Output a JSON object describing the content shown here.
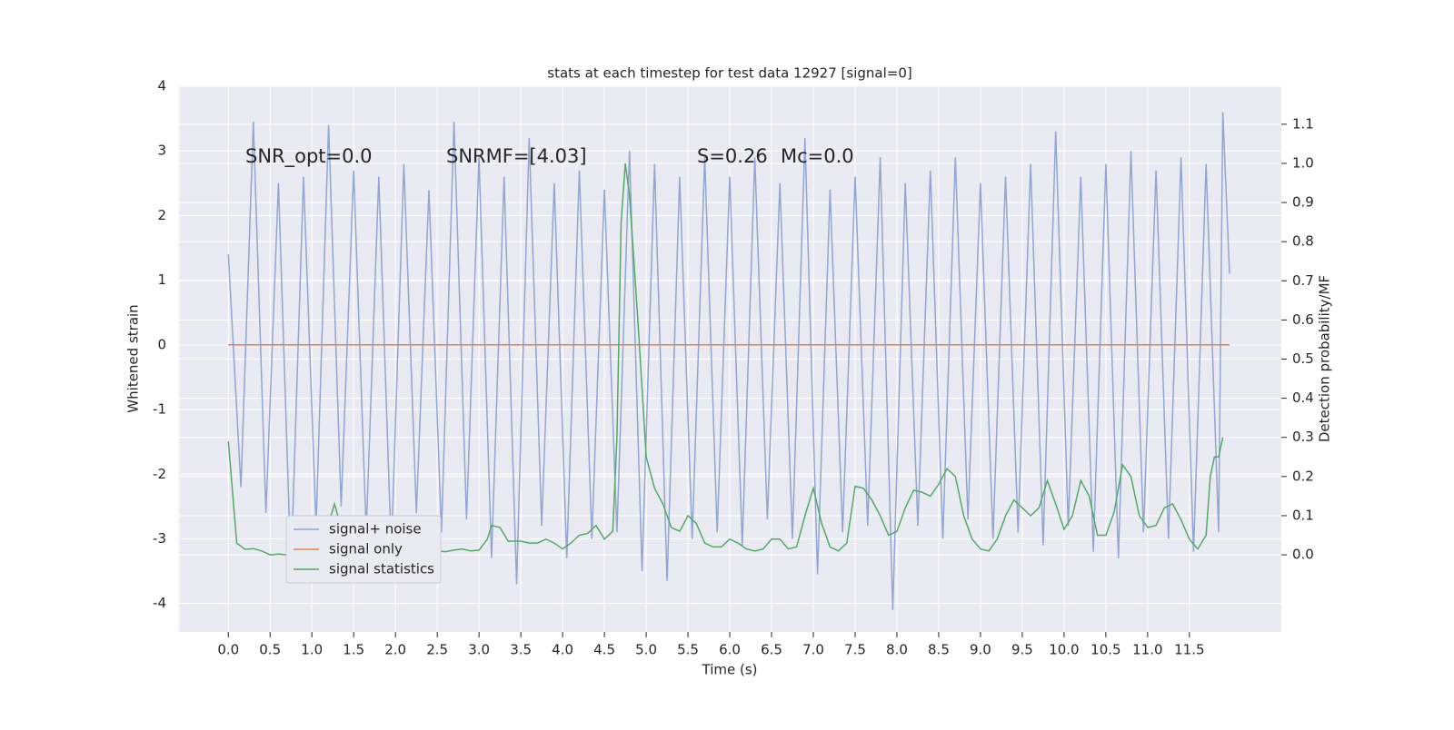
{
  "chart_data": {
    "type": "line",
    "title": "stats at each timestep for test data 12927 [signal=0]",
    "xlabel": "Time (s)",
    "ylabel": "Whitened strain",
    "y2label": "Detection probability/MF",
    "annotations": [
      "SNR_opt=0.0",
      "SNRMF=[4.03]",
      "S=0.26",
      "Mc=0.0"
    ],
    "xlim": [
      -0.59,
      12.6
    ],
    "ylim": [
      -4.44,
      4
    ],
    "y2lim": [
      -0.197,
      1.197
    ],
    "xticks": [
      {
        "value": 0,
        "label": "0.0"
      },
      0.5,
      {
        "value": 1,
        "label": "1.0"
      },
      1.5,
      {
        "value": 2,
        "label": "2.0"
      },
      2.5,
      {
        "value": 3,
        "label": "3.0"
      },
      3.5,
      {
        "value": 4,
        "label": "4.0"
      },
      4.5,
      {
        "value": 5,
        "label": "5.0"
      },
      5.5,
      {
        "value": 6,
        "label": "6.0"
      },
      6.5,
      {
        "value": 7,
        "label": "7.0"
      },
      7.5,
      {
        "value": 8,
        "label": "8.0"
      },
      8.5,
      {
        "value": 9,
        "label": "9.0"
      },
      9.5,
      {
        "value": 10,
        "label": "10.0"
      },
      10.5,
      {
        "value": 11,
        "label": "11.0"
      },
      11.5
    ],
    "yticks": [
      -4,
      -3,
      -2,
      -1,
      0,
      1,
      2,
      3,
      4
    ],
    "y2ticks": [
      {
        "value": 0,
        "label": "0.0"
      },
      0.1,
      0.2,
      0.3,
      0.4,
      0.5,
      0.6,
      0.7,
      0.8,
      0.9,
      {
        "value": 1,
        "label": "1.0"
      },
      1.1
    ],
    "grid": true,
    "legend": "lower left",
    "series": [
      {
        "name": "signal+ noise",
        "color": "#92a6cf",
        "x": [
          0,
          0.15,
          0.3,
          0.45,
          0.6,
          0.75,
          0.9,
          1.05,
          1.2,
          1.35,
          1.5,
          1.65,
          1.8,
          1.95,
          2.1,
          2.25,
          2.4,
          2.55,
          2.7,
          2.85,
          3.0,
          3.15,
          3.3,
          3.45,
          3.6,
          3.75,
          3.9,
          4.05,
          4.2,
          4.35,
          4.5,
          4.65,
          4.8,
          4.95,
          5.1,
          5.25,
          5.4,
          5.55,
          5.7,
          5.85,
          6.0,
          6.15,
          6.3,
          6.45,
          6.6,
          6.75,
          6.9,
          7.05,
          7.2,
          7.35,
          7.5,
          7.65,
          7.8,
          7.95,
          8.1,
          8.25,
          8.4,
          8.55,
          8.7,
          8.85,
          9.0,
          9.15,
          9.3,
          9.45,
          9.6,
          9.75,
          9.9,
          10.05,
          10.2,
          10.35,
          10.5,
          10.65,
          10.8,
          10.95,
          11.1,
          11.25,
          11.4,
          11.55,
          11.7,
          11.85,
          11.9,
          11.98
        ],
        "values": [
          1.4,
          -2.2,
          3.45,
          -2.6,
          2.5,
          -3.5,
          2.6,
          -2.8,
          3.4,
          -2.5,
          2.7,
          -2.9,
          2.6,
          -3.2,
          2.8,
          -2.6,
          2.4,
          -2.9,
          3.45,
          -2.7,
          2.9,
          -3.3,
          2.6,
          -3.7,
          3.2,
          -2.8,
          2.5,
          -3.3,
          2.7,
          -3.0,
          2.4,
          -2.9,
          3.0,
          -3.5,
          2.8,
          -3.65,
          2.6,
          -3.0,
          2.9,
          -2.9,
          2.6,
          -3.1,
          2.9,
          -2.7,
          2.5,
          -3.0,
          3.2,
          -3.55,
          2.4,
          -2.9,
          2.6,
          -2.8,
          2.9,
          -4.1,
          2.5,
          -2.8,
          2.7,
          -3.0,
          2.9,
          -2.7,
          2.5,
          -3.0,
          2.6,
          -2.9,
          2.8,
          -3.1,
          3.3,
          -2.8,
          2.6,
          -3.2,
          2.8,
          -3.3,
          3.0,
          -2.9,
          2.7,
          -3.0,
          2.9,
          -3.2,
          2.8,
          -2.9,
          3.6,
          1.1
        ]
      },
      {
        "name": "signal only",
        "color": "#dd8452",
        "x": [
          0,
          11.98
        ],
        "values": [
          0,
          0
        ]
      },
      {
        "name": "signal statistics",
        "color": "#55a868",
        "axis": "y2",
        "x": [
          0,
          0.1,
          0.2,
          0.3,
          0.4,
          0.5,
          0.6,
          0.7,
          0.8,
          0.9,
          1.0,
          1.1,
          1.15,
          1.2,
          1.27,
          1.35,
          1.45,
          1.5,
          1.6,
          1.7,
          1.8,
          1.9,
          2.0,
          2.1,
          2.2,
          2.3,
          2.4,
          2.5,
          2.6,
          2.7,
          2.8,
          2.9,
          3.0,
          3.1,
          3.15,
          3.25,
          3.35,
          3.5,
          3.6,
          3.7,
          3.8,
          3.9,
          4.0,
          4.1,
          4.2,
          4.3,
          4.4,
          4.5,
          4.6,
          4.65,
          4.7,
          4.75,
          4.8,
          4.9,
          5.0,
          5.1,
          5.2,
          5.3,
          5.4,
          5.5,
          5.6,
          5.7,
          5.8,
          5.9,
          6.0,
          6.1,
          6.2,
          6.3,
          6.4,
          6.5,
          6.6,
          6.7,
          6.8,
          6.9,
          7.0,
          7.1,
          7.2,
          7.3,
          7.4,
          7.5,
          7.6,
          7.7,
          7.8,
          7.9,
          8.0,
          8.1,
          8.2,
          8.3,
          8.4,
          8.5,
          8.6,
          8.7,
          8.8,
          8.9,
          9.0,
          9.1,
          9.2,
          9.3,
          9.4,
          9.5,
          9.6,
          9.7,
          9.8,
          9.9,
          10.0,
          10.1,
          10.2,
          10.3,
          10.4,
          10.5,
          10.6,
          10.7,
          10.8,
          10.9,
          11.0,
          11.1,
          11.2,
          11.3,
          11.4,
          11.5,
          11.6,
          11.7,
          11.75,
          11.8,
          11.85,
          11.9
        ],
        "values": [
          0.29,
          0.03,
          0.014,
          0.016,
          0.01,
          0.0,
          0.002,
          0.0,
          0.0,
          0.0,
          0.0,
          0.005,
          0.02,
          0.08,
          0.13,
          0.07,
          0.02,
          0.02,
          0.02,
          0.015,
          0.01,
          0.01,
          0.015,
          0.02,
          0.025,
          0.022,
          0.015,
          0.01,
          0.008,
          0.012,
          0.015,
          0.01,
          0.012,
          0.04,
          0.075,
          0.07,
          0.035,
          0.035,
          0.03,
          0.03,
          0.04,
          0.03,
          0.015,
          0.03,
          0.05,
          0.055,
          0.075,
          0.04,
          0.06,
          0.3,
          0.85,
          1.0,
          0.92,
          0.6,
          0.25,
          0.17,
          0.13,
          0.07,
          0.06,
          0.1,
          0.08,
          0.03,
          0.02,
          0.02,
          0.04,
          0.03,
          0.015,
          0.01,
          0.015,
          0.04,
          0.04,
          0.015,
          0.02,
          0.1,
          0.17,
          0.08,
          0.02,
          0.01,
          0.03,
          0.175,
          0.17,
          0.14,
          0.1,
          0.05,
          0.06,
          0.12,
          0.165,
          0.16,
          0.15,
          0.18,
          0.22,
          0.2,
          0.1,
          0.04,
          0.015,
          0.01,
          0.04,
          0.1,
          0.14,
          0.12,
          0.1,
          0.12,
          0.19,
          0.13,
          0.065,
          0.1,
          0.19,
          0.15,
          0.05,
          0.05,
          0.11,
          0.23,
          0.2,
          0.1,
          0.07,
          0.075,
          0.12,
          0.13,
          0.09,
          0.04,
          0.015,
          0.05,
          0.2,
          0.25,
          0.25,
          0.3
        ]
      }
    ]
  }
}
